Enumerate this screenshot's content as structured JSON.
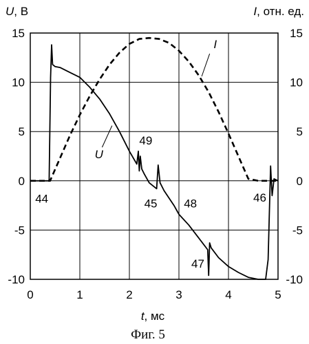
{
  "chart_data": {
    "type": "line",
    "caption": "Фиг. 5",
    "xlabel_var": "t",
    "xlabel_unit": ", мс",
    "ylabel_left_var": "U",
    "ylabel_left_unit": ", В",
    "ylabel_right_var": "I",
    "ylabel_right_unit": ", отн. ед.",
    "xlim": [
      0,
      5
    ],
    "ylim": [
      -10,
      15
    ],
    "x_ticks": [
      "0",
      "1",
      "2",
      "3",
      "4",
      "5"
    ],
    "y_ticks": [
      "-10",
      "-5",
      "0",
      "5",
      "10",
      "15"
    ],
    "grid": true,
    "series": [
      {
        "name": "U",
        "style": "solid",
        "x": [
          0,
          0.38,
          0.41,
          0.43,
          0.45,
          0.5,
          0.6,
          0.8,
          1.0,
          1.2,
          1.4,
          1.6,
          1.8,
          2.0,
          2.15,
          2.18,
          2.2,
          2.22,
          2.25,
          2.3,
          2.4,
          2.55,
          2.58,
          2.62,
          2.7,
          2.9,
          3.0,
          3.2,
          3.4,
          3.58,
          3.6,
          3.62,
          3.65,
          3.8,
          4.0,
          4.2,
          4.4,
          4.6,
          4.75,
          4.8,
          4.85,
          4.88,
          4.92,
          5.0
        ],
        "y": [
          0,
          0,
          10.5,
          13.8,
          11.8,
          11.6,
          11.5,
          11.0,
          10.5,
          9.5,
          8.3,
          6.8,
          5.0,
          3.0,
          1.7,
          3.0,
          1.0,
          2.5,
          1.2,
          0.7,
          -0.2,
          -0.8,
          1.6,
          -0.2,
          -1.0,
          -2.5,
          -3.4,
          -4.5,
          -5.8,
          -7.0,
          -9.6,
          -6.3,
          -6.8,
          -7.8,
          -8.7,
          -9.3,
          -9.8,
          -10.0,
          -10.0,
          -8.0,
          1.5,
          -1.5,
          0.2,
          0
        ]
      },
      {
        "name": "I",
        "style": "dashed",
        "x": [
          0,
          0.4,
          0.6,
          0.8,
          1.0,
          1.2,
          1.4,
          1.6,
          1.8,
          2.0,
          2.2,
          2.4,
          2.6,
          2.8,
          3.0,
          3.2,
          3.4,
          3.6,
          3.8,
          4.0,
          4.2,
          4.4,
          4.6,
          4.8,
          5.0
        ],
        "y": [
          0,
          0,
          2.3,
          4.6,
          6.7,
          8.6,
          10.3,
          11.8,
          13.0,
          13.9,
          14.4,
          14.5,
          14.4,
          14.0,
          13.2,
          12.1,
          10.7,
          9.0,
          7.0,
          4.8,
          2.5,
          0.2,
          0,
          0,
          0
        ]
      }
    ],
    "annotations": [
      {
        "text": "44",
        "x": 0.1,
        "y": -1.8
      },
      {
        "text": "45",
        "x": 2.3,
        "y": -2.3
      },
      {
        "text": "46",
        "x": 4.5,
        "y": -1.7
      },
      {
        "text": "47",
        "x": 3.25,
        "y": -8.4
      },
      {
        "text": "48",
        "x": 3.1,
        "y": -2.3
      },
      {
        "text": "49",
        "x": 2.2,
        "y": 4.1
      },
      {
        "text": "U",
        "x": 1.3,
        "y": 2.7
      },
      {
        "text": "I",
        "x": 3.7,
        "y": 13.9
      }
    ]
  }
}
